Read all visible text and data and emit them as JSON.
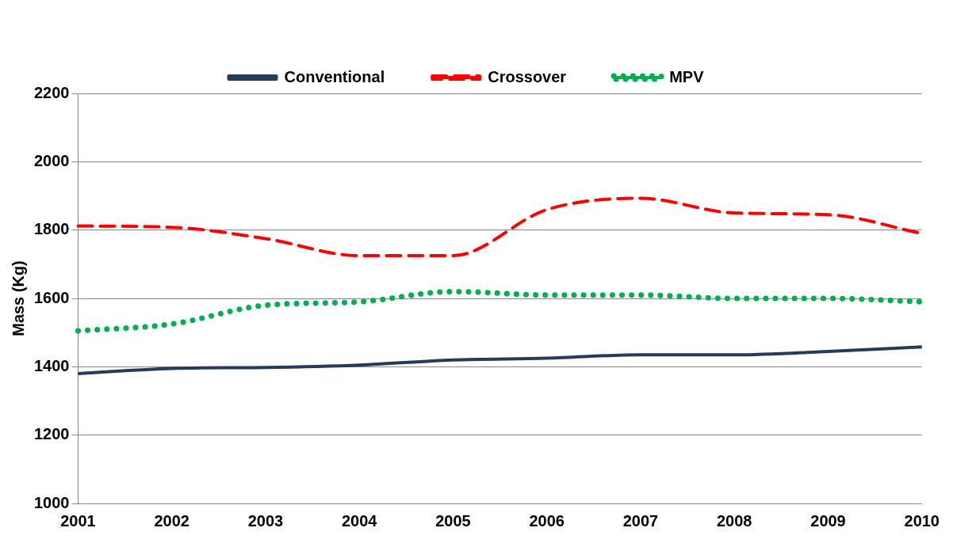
{
  "chart_data": {
    "type": "line",
    "ylabel": "Mass (Kg)",
    "categories": [
      "2001",
      "2002",
      "2003",
      "2004",
      "2005",
      "2006",
      "2007",
      "2008",
      "2009",
      "2010"
    ],
    "series": [
      {
        "name": "Conventional",
        "color": "#243b5c",
        "line_style": "solid",
        "values": [
          1380,
          1395,
          1398,
          1405,
          1420,
          1425,
          1435,
          1435,
          1445,
          1458
        ]
      },
      {
        "name": "Crossover",
        "color": "#ff0000",
        "line_style": "dashed",
        "values": [
          1812,
          1808,
          1775,
          1725,
          1725,
          1860,
          1893,
          1850,
          1845,
          1790
        ]
      },
      {
        "name": "MPV",
        "color": "#00b050",
        "line_style": "dotted",
        "values": [
          1505,
          1525,
          1580,
          1590,
          1620,
          1610,
          1610,
          1600,
          1600,
          1590
        ]
      }
    ],
    "ylim": [
      1000,
      2200
    ],
    "yticks": [
      1000,
      1200,
      1400,
      1600,
      1800,
      2000,
      2200
    ],
    "grid": "y",
    "legend": "top",
    "marker": "none"
  }
}
